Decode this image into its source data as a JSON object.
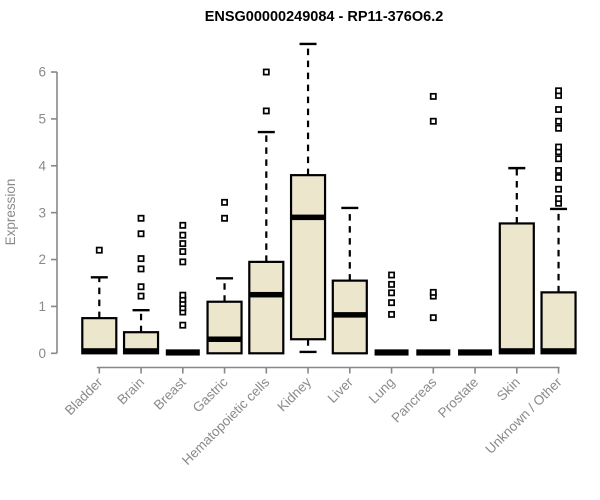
{
  "title": "ENSG00000249084 - RP11-376O6.2",
  "chart_data": {
    "type": "boxplot",
    "title": "ENSG00000249084 - RP11-376O6.2",
    "xlabel": "",
    "ylabel": "Expression",
    "ylim": [
      0,
      6
    ],
    "yticks": [
      0,
      1,
      2,
      3,
      4,
      5,
      6
    ],
    "grid": false,
    "legend": "none",
    "categories": [
      "Bladder",
      "Brain",
      "Breast",
      "Gastric",
      "Hematopoietic cells",
      "Kidney",
      "Liver",
      "Lung",
      "Pancreas",
      "Prostate",
      "Skin",
      "Unknown / Other"
    ],
    "series": [
      {
        "name": "Bladder",
        "low": 0,
        "q1": 0,
        "median": 0.05,
        "q3": 0.75,
        "high": 1.62,
        "outliers": [
          2.2
        ]
      },
      {
        "name": "Brain",
        "low": 0,
        "q1": 0,
        "median": 0.05,
        "q3": 0.45,
        "high": 0.92,
        "outliers": [
          1.22,
          1.42,
          1.8,
          2.02,
          2.55,
          2.88
        ]
      },
      {
        "name": "Breast",
        "low": 0,
        "q1": 0,
        "median": 0.02,
        "q3": 0.02,
        "high": 0.02,
        "outliers": [
          0.6,
          0.88,
          0.97,
          1.06,
          1.15,
          1.24,
          1.95,
          2.17,
          2.34,
          2.52,
          2.73
        ]
      },
      {
        "name": "Gastric",
        "low": 0,
        "q1": 0,
        "median": 0.3,
        "q3": 1.1,
        "high": 1.6,
        "outliers": [
          2.88,
          3.22
        ]
      },
      {
        "name": "Hematopoietic cells",
        "low": 0,
        "q1": 0,
        "median": 1.25,
        "q3": 1.95,
        "high": 4.72,
        "outliers": [
          5.17,
          6.0
        ]
      },
      {
        "name": "Kidney",
        "low": 0.03,
        "q1": 0.3,
        "median": 2.9,
        "q3": 3.8,
        "high": 6.6,
        "outliers": []
      },
      {
        "name": "Liver",
        "low": 0,
        "q1": 0,
        "median": 0.82,
        "q3": 1.55,
        "high": 3.1,
        "outliers": []
      },
      {
        "name": "Lung",
        "low": 0,
        "q1": 0,
        "median": 0.02,
        "q3": 0.02,
        "high": 0.02,
        "outliers": [
          0.83,
          1.08,
          1.29,
          1.47,
          1.67
        ]
      },
      {
        "name": "Pancreas",
        "low": 0,
        "q1": 0,
        "median": 0.02,
        "q3": 0.02,
        "high": 0.02,
        "outliers": [
          0.76,
          1.22,
          1.3,
          4.95,
          5.48
        ]
      },
      {
        "name": "Prostate",
        "low": 0,
        "q1": 0,
        "median": 0.02,
        "q3": 0.02,
        "high": 0.02,
        "outliers": []
      },
      {
        "name": "Skin",
        "low": 0,
        "q1": 0,
        "median": 0.05,
        "q3": 2.77,
        "high": 3.95,
        "outliers": []
      },
      {
        "name": "Unknown / Other",
        "low": 0,
        "q1": 0,
        "median": 0.05,
        "q3": 1.3,
        "high": 3.08,
        "outliers": [
          3.2,
          3.3,
          3.5,
          3.75,
          3.9,
          4.15,
          4.3,
          4.4,
          4.8,
          4.95,
          5.2,
          5.5,
          5.6
        ]
      }
    ],
    "colors": {
      "box_fill": "#ece6cc",
      "box_border": "#000000",
      "median": "#000000",
      "whisker": "#000000",
      "outlier": "#000000",
      "axis": "#888888",
      "tick_label": "#8a8a8a",
      "title": "#000000"
    }
  }
}
